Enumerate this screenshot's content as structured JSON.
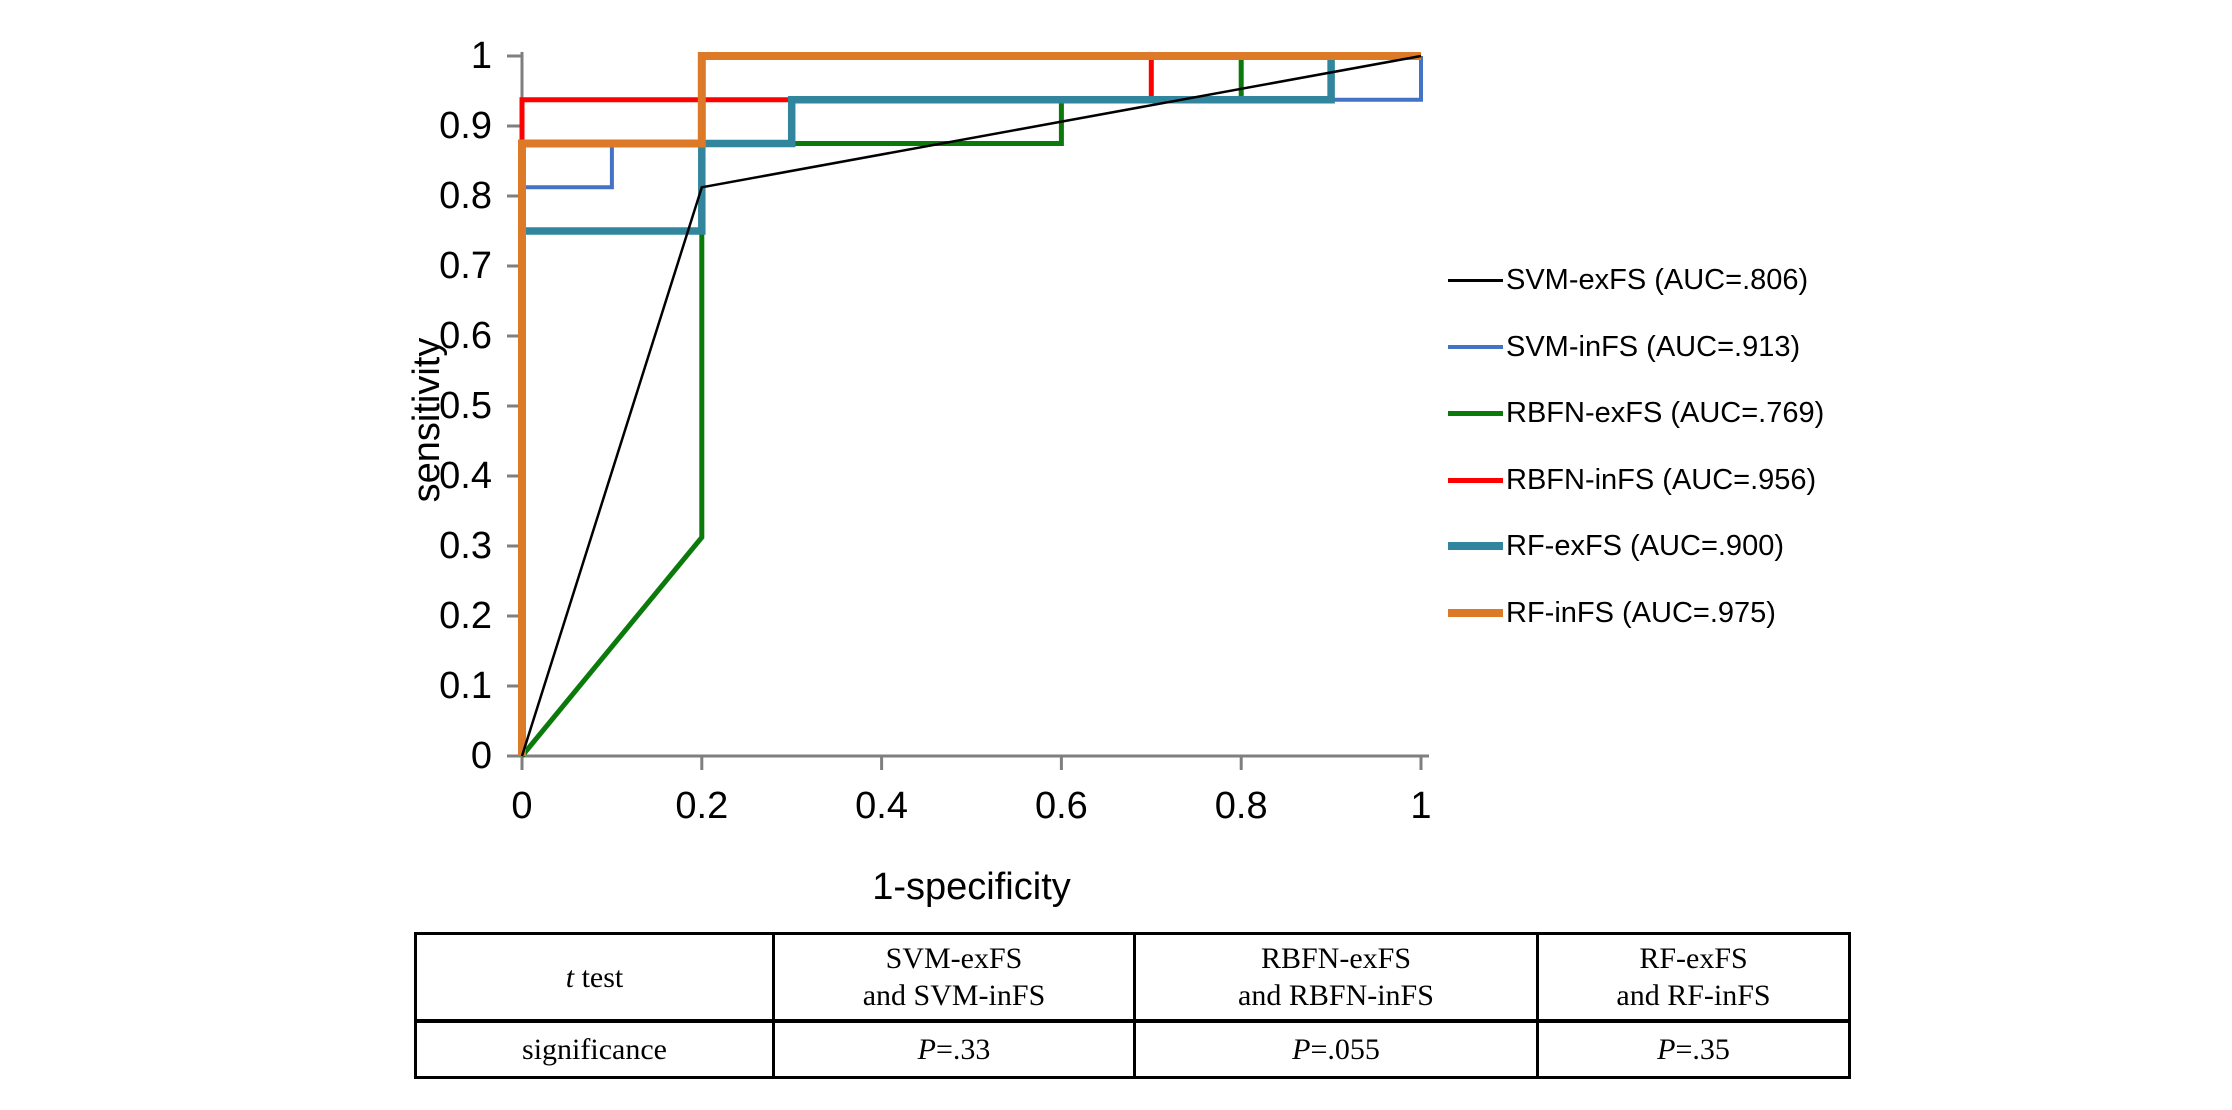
{
  "figure": {
    "background": "#FFFFFF",
    "axis_color": "#7F7F7F"
  },
  "chart_data": {
    "type": "line",
    "subtype": "roc-curves",
    "title": "",
    "xlabel": "1-specificity",
    "ylabel": "sensitivity",
    "xlim": [
      0,
      1
    ],
    "ylim": [
      0,
      1
    ],
    "x_tick_labels": [
      "0",
      "0.2",
      "0.4",
      "0.6",
      "0.8",
      "1"
    ],
    "y_tick_labels": [
      "0",
      "0.1",
      "0.2",
      "0.3",
      "0.4",
      "0.5",
      "0.6",
      "0.7",
      "0.8",
      "0.9",
      "1"
    ],
    "grid": false,
    "legend_position": "right-outside",
    "series": [
      {
        "name": "SVM-exFS",
        "label": "SVM-exFS (AUC=.806)",
        "auc": 0.806,
        "color": "#000000",
        "line_width": 2.5,
        "points": [
          [
            0,
            0
          ],
          [
            0.2,
            0.8125
          ],
          [
            1,
            1
          ]
        ]
      },
      {
        "name": "SVM-inFS",
        "label": "SVM-inFS (AUC=.913)",
        "auc": 0.913,
        "color": "#4472C4",
        "line_width": 4,
        "points": [
          [
            0,
            0
          ],
          [
            0,
            0.8125
          ],
          [
            0.1,
            0.8125
          ],
          [
            0.1,
            0.875
          ],
          [
            0.3,
            0.875
          ],
          [
            0.3,
            0.9375
          ],
          [
            1,
            0.9375
          ],
          [
            1,
            1
          ]
        ]
      },
      {
        "name": "RBFN-exFS",
        "label": "RBFN-exFS (AUC=.769)",
        "auc": 0.769,
        "color": "#0B7A0B",
        "line_width": 5,
        "points": [
          [
            0,
            0
          ],
          [
            0.2,
            0.3125
          ],
          [
            0.2,
            0.875
          ],
          [
            0.6,
            0.875
          ],
          [
            0.6,
            0.9375
          ],
          [
            0.8,
            0.9375
          ],
          [
            0.8,
            1
          ],
          [
            1,
            1
          ]
        ]
      },
      {
        "name": "RBFN-inFS",
        "label": "RBFN-inFS (AUC=.956)",
        "auc": 0.956,
        "color": "#FF0000",
        "line_width": 5,
        "points": [
          [
            0,
            0
          ],
          [
            0,
            0.9375
          ],
          [
            0.7,
            0.9375
          ],
          [
            0.7,
            1
          ],
          [
            1,
            1
          ]
        ]
      },
      {
        "name": "RF-exFS",
        "label": "RF-exFS (AUC=.900)",
        "auc": 0.9,
        "color": "#31859C",
        "line_width": 7.5,
        "points": [
          [
            0,
            0
          ],
          [
            0,
            0.75
          ],
          [
            0.2,
            0.75
          ],
          [
            0.2,
            0.875
          ],
          [
            0.3,
            0.875
          ],
          [
            0.3,
            0.9375
          ],
          [
            0.9,
            0.9375
          ],
          [
            0.9,
            1
          ],
          [
            1,
            1
          ]
        ]
      },
      {
        "name": "RF-inFS",
        "label": "RF-inFS (AUC=.975)",
        "auc": 0.975,
        "color": "#DD7A27",
        "line_width": 8,
        "points": [
          [
            0,
            0
          ],
          [
            0,
            0.875
          ],
          [
            0.2,
            0.875
          ],
          [
            0.2,
            1
          ],
          [
            1,
            1
          ]
        ]
      }
    ],
    "draw_order": [
      "SVM-inFS",
      "RBFN-exFS",
      "RBFN-inFS",
      "RF-exFS",
      "RF-inFS",
      "SVM-exFS"
    ]
  },
  "table": {
    "rows": [
      [
        {
          "italic_prefix": "t",
          "text": " test"
        },
        {
          "text": "SVM-exFS\nand SVM-inFS"
        },
        {
          "text": "RBFN-exFS\nand RBFN-inFS"
        },
        {
          "text": "RF-exFS\nand RF-inFS"
        }
      ],
      [
        {
          "text": "significance"
        },
        {
          "italic_prefix": "P",
          "text": "=.33"
        },
        {
          "italic_prefix": "P",
          "text": "=.055"
        },
        {
          "italic_prefix": "P",
          "text": "=.35"
        }
      ]
    ]
  }
}
